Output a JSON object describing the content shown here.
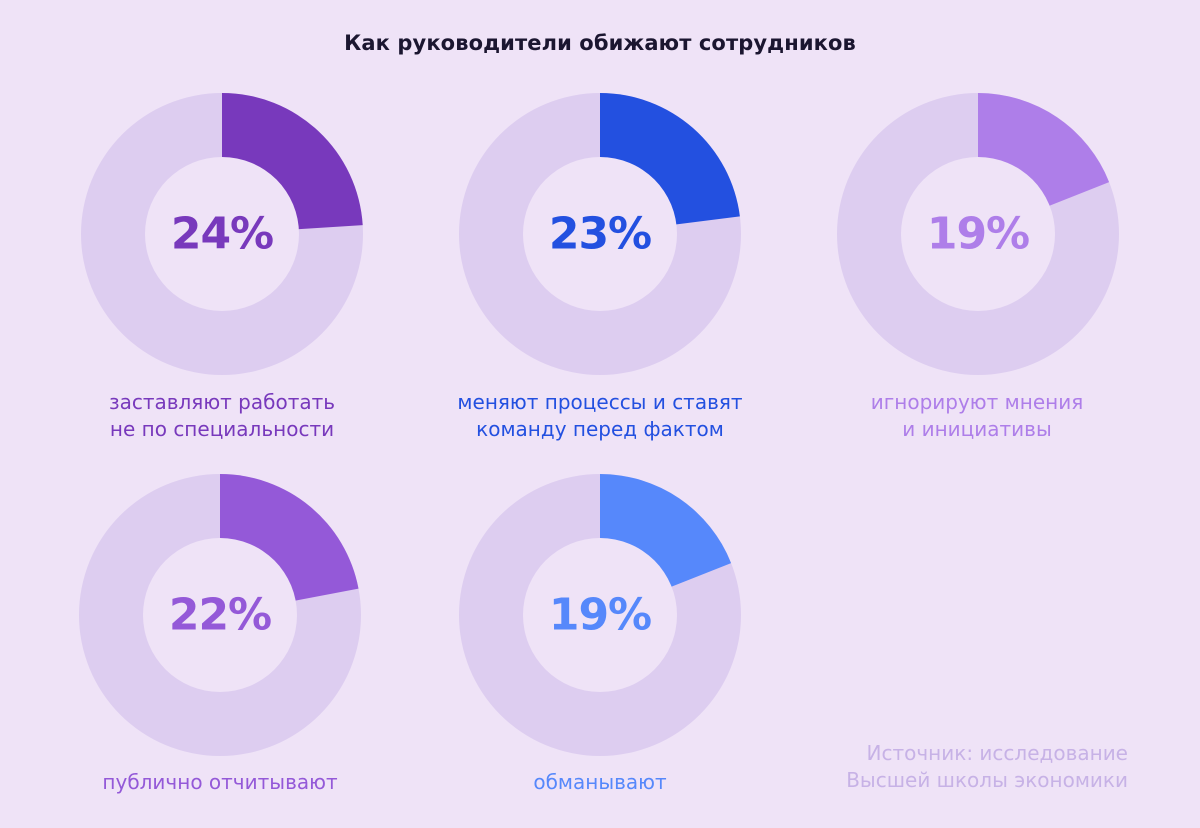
{
  "title": "Как руководители обижают сотрудников",
  "source_line1": "Источник: исследование",
  "source_line2": "Высшей школы экономики",
  "colors": {
    "background": "#efe3f7",
    "track": "#ddcdf0",
    "inner": "#efe3f7"
  },
  "chart_data": {
    "type": "pie",
    "title": "Как руководители обижают сотрудников",
    "unit": "%",
    "items": [
      {
        "value": 24,
        "label": "24%",
        "caption_line1": "заставляют работать",
        "caption_line2": "не по специальности",
        "color": "#7839bc"
      },
      {
        "value": 23,
        "label": "23%",
        "caption_line1": "меняют процессы и ставят",
        "caption_line2": "команду перед фактом",
        "color": "#2350e0"
      },
      {
        "value": 19,
        "label": "19%",
        "caption_line1": "игнорируют мнения",
        "caption_line2": "и инициативы",
        "color": "#ae7ee9"
      },
      {
        "value": 22,
        "label": "22%",
        "caption_line1": "публично отчитывают",
        "caption_line2": "",
        "color": "#9459d8"
      },
      {
        "value": 19,
        "label": "19%",
        "caption_line1": "обманывают",
        "caption_line2": "",
        "color": "#5688fb"
      }
    ]
  }
}
